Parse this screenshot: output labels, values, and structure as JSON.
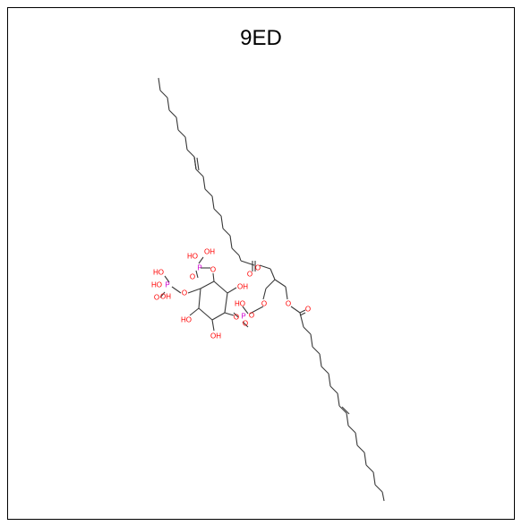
{
  "title": "9ED",
  "colors": {
    "carbon": "#3a3a3a",
    "oxygen": "#ff0000",
    "phosphorus": "#d100d1",
    "border": "#000000"
  },
  "atom_labels": {
    "ho": "HO",
    "oh": "OH",
    "o": "O",
    "p": "P"
  }
}
